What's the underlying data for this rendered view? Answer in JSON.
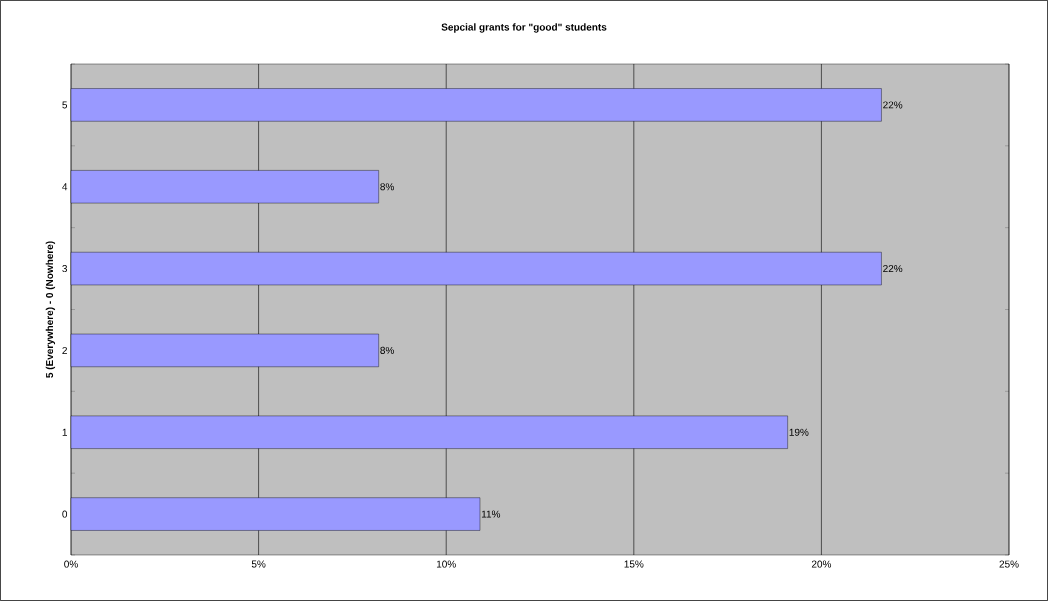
{
  "chart_data": {
    "type": "bar",
    "orientation": "horizontal",
    "title": "Sepcial grants for \"good\" students",
    "ylabel": "5 (Everywhere) - 0 (Nowhere)",
    "categories": [
      "5",
      "4",
      "3",
      "2",
      "1",
      "0"
    ],
    "values": [
      21.6,
      8.2,
      21.6,
      8.2,
      19.1,
      10.9
    ],
    "value_labels": [
      "22%",
      "8%",
      "22%",
      "8%",
      "19%",
      "11%"
    ],
    "color": "#9999ff",
    "xlim": [
      0,
      25
    ],
    "xticks": [
      {
        "value": 0,
        "label": "0%"
      },
      {
        "value": 5,
        "label": "5%"
      },
      {
        "value": 10,
        "label": "10%"
      },
      {
        "value": 15,
        "label": "15%"
      },
      {
        "value": 20,
        "label": "20%"
      },
      {
        "value": 25,
        "label": "25%"
      }
    ],
    "grid": "x"
  }
}
